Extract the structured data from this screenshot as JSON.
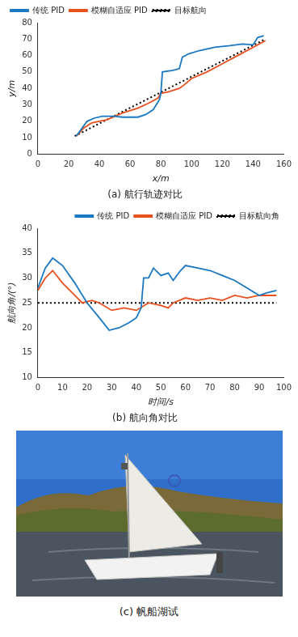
{
  "chart_data": [
    {
      "type": "line",
      "title": "(a) 航行轨迹对比",
      "x_label": "x/m",
      "y_label": "y/m",
      "xlim": [
        0,
        160
      ],
      "xticks": [
        0,
        20,
        40,
        60,
        80,
        100,
        120,
        140,
        160
      ],
      "ylim": [
        0,
        80
      ],
      "yticks": [
        0,
        10,
        20,
        30,
        40,
        50,
        60,
        70,
        80
      ],
      "grid": false,
      "legend": "top-left",
      "series": [
        {
          "name": "传统 PID",
          "color": "#1a78c2",
          "line_style": "solid",
          "x": [
            25,
            32,
            37,
            42,
            50,
            55,
            65,
            70,
            75,
            79,
            80,
            81,
            88,
            92,
            94,
            98,
            105,
            115,
            125,
            133,
            140,
            143,
            147
          ],
          "values": [
            11,
            20,
            22,
            23,
            23,
            22.5,
            22.5,
            24,
            27,
            33,
            37,
            50,
            51,
            52,
            59,
            61,
            63,
            65,
            66,
            67,
            66.5,
            71,
            72
          ]
        },
        {
          "name": "模糊自适应 PID",
          "color": "#e8501e",
          "line_style": "solid",
          "x": [
            25,
            30,
            35,
            45,
            55,
            65,
            72,
            78,
            80,
            85,
            92,
            95,
            100,
            110,
            120,
            130,
            140,
            148
          ],
          "values": [
            11,
            16,
            19,
            21,
            25,
            28,
            31,
            34,
            37,
            38,
            40,
            42,
            46,
            50,
            55,
            60,
            65,
            69
          ]
        },
        {
          "name": "目标航向",
          "color": "#000000",
          "line_style": "dotted",
          "x": [
            24,
            148
          ],
          "values": [
            11,
            70
          ]
        }
      ]
    },
    {
      "type": "line",
      "title": "(b) 航向角对比",
      "x_label": "时间/s",
      "y_label": "航向角/(°)",
      "xlim": [
        0,
        100
      ],
      "xticks": [
        0,
        10,
        20,
        30,
        40,
        50,
        60,
        70,
        80,
        90,
        100
      ],
      "ylim": [
        10,
        40
      ],
      "yticks": [
        10,
        15,
        20,
        25,
        30,
        35,
        40
      ],
      "grid": false,
      "legend": "center-right",
      "series": [
        {
          "name": "传统 PID",
          "color": "#1a78c2",
          "line_style": "solid",
          "x": [
            0,
            3,
            6,
            10,
            15,
            20,
            25,
            29,
            33,
            37,
            40,
            42,
            43,
            45,
            47,
            50,
            53,
            55,
            58,
            60,
            65,
            70,
            75,
            80,
            85,
            90,
            93,
            97
          ],
          "values": [
            28,
            32,
            34,
            32.5,
            29,
            25,
            22,
            19.5,
            20,
            21,
            22,
            24,
            30,
            30,
            32,
            30.5,
            31,
            29.5,
            31.5,
            32.5,
            32,
            31.5,
            30.5,
            29.5,
            28,
            26.5,
            27,
            27.5
          ]
        },
        {
          "name": "模糊自适应 PID",
          "color": "#e8501e",
          "line_style": "solid",
          "x": [
            0,
            3,
            6,
            10,
            15,
            18,
            22,
            25,
            30,
            35,
            40,
            45,
            50,
            53,
            55,
            60,
            65,
            70,
            75,
            80,
            85,
            90,
            97
          ],
          "values": [
            27.5,
            30,
            31.5,
            29,
            26.5,
            25,
            25.5,
            25,
            23.5,
            24,
            23.5,
            25,
            24.5,
            24,
            25,
            26,
            25.5,
            26,
            25.5,
            26.5,
            26,
            26.5,
            26.5
          ]
        },
        {
          "name": "目标航向角",
          "color": "#000000",
          "line_style": "dotted",
          "x": [
            0,
            97
          ],
          "values": [
            25,
            25
          ]
        }
      ]
    }
  ],
  "photo": {
    "caption": "(c) 帆船湖试"
  }
}
